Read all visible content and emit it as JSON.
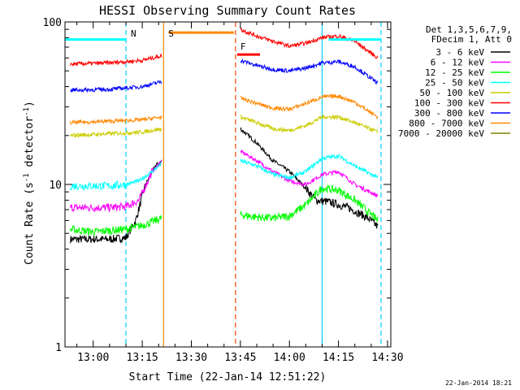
{
  "chart_data": {
    "type": "line",
    "title": "HESSI Observing Summary Count Rates",
    "xlabel": "Start Time (22-Jan-14 12:51:22)",
    "ylabel_main": "Count Rate (s",
    "ylabel_sup": "-1",
    "ylabel_tail": " detector",
    "ylabel_end": ")",
    "yscale": "log",
    "ylim": [
      1,
      100
    ],
    "xlim": [
      "12:51:22",
      "14:31:00"
    ],
    "xticks": [
      "13:00",
      "13:15",
      "13:30",
      "13:45",
      "14:00",
      "14:15",
      "14:30"
    ],
    "yticks": [
      "1",
      "10",
      "100"
    ],
    "legend_header": [
      "Det 1,3,5,6,7,9,",
      "FDecim 1, Att 0"
    ],
    "legend_position": "right",
    "footer_date": "22-Jan-2014 18:21",
    "bands": [
      {
        "label": "3 - 6 keV",
        "color": "#000000"
      },
      {
        "label": "6 - 12 keV",
        "color": "#ff00ff"
      },
      {
        "label": "12 - 25 keV",
        "color": "#00ff00"
      },
      {
        "label": "25 - 50 keV",
        "color": "#00ffff"
      },
      {
        "label": "50 - 100 keV",
        "color": "#cccc00"
      },
      {
        "label": "100 - 300 keV",
        "color": "#ff0000"
      },
      {
        "label": "300 - 800 keV",
        "color": "#0000ff"
      },
      {
        "label": "800 - 7000 keV",
        "color": "#ff8800"
      },
      {
        "label": "7000 - 20000 keV",
        "color": "#808000"
      }
    ],
    "markers": [
      {
        "label": "N",
        "time": "13:10",
        "style": "dashed",
        "color": "#00ccff"
      },
      {
        "label": "S",
        "time": "13:21:30",
        "style": "solid",
        "color": "#ff8800"
      },
      {
        "label": "F",
        "time": "13:43:30",
        "style": "dashed",
        "color": "#ff4400"
      },
      {
        "label": "",
        "time": "14:10",
        "style": "solid",
        "color": "#00ccff"
      },
      {
        "label": "",
        "time": "14:28",
        "style": "dashed",
        "color": "#00ccff"
      }
    ],
    "series": [
      {
        "name": "3 - 6 keV",
        "color": "#000000",
        "segments": [
          {
            "t": [
              "12:53",
              "13:05",
              "13:10",
              "13:13",
              "13:16",
              "13:19",
              "13:21"
            ],
            "v": [
              4.6,
              4.6,
              4.7,
              6,
              10,
              13,
              14
            ]
          },
          {
            "t": [
              "13:45",
              "13:50",
              "13:55",
              "14:00",
              "14:05",
              "14:08",
              "14:12",
              "14:18",
              "14:24",
              "14:27"
            ],
            "v": [
              22,
              18,
              14,
              12,
              9.5,
              8,
              7.8,
              7.2,
              6.2,
              5.5
            ]
          }
        ]
      },
      {
        "name": "6 - 12 keV",
        "color": "#ff00ff",
        "segments": [
          {
            "t": [
              "12:53",
              "13:05",
              "13:10",
              "13:14",
              "13:18",
              "13:21"
            ],
            "v": [
              7.2,
              7.2,
              7.3,
              8,
              12,
              14
            ]
          },
          {
            "t": [
              "13:45",
              "13:50",
              "13:55",
              "14:00",
              "14:05",
              "14:10",
              "14:15",
              "14:20",
              "14:27"
            ],
            "v": [
              16,
              14,
              12,
              10.5,
              10,
              11.5,
              12,
              10,
              8.5
            ]
          }
        ]
      },
      {
        "name": "12 - 25 keV",
        "color": "#00ff00",
        "segments": [
          {
            "t": [
              "12:53",
              "13:00",
              "13:10",
              "13:15",
              "13:21"
            ],
            "v": [
              5.3,
              5.1,
              5.3,
              5.6,
              6.2
            ]
          },
          {
            "t": [
              "13:45",
              "13:50",
              "13:55",
              "14:00",
              "14:05",
              "14:10",
              "14:15",
              "14:20",
              "14:27"
            ],
            "v": [
              6.5,
              6.3,
              6.2,
              6.4,
              7.5,
              9.5,
              9.2,
              8,
              6
            ]
          }
        ]
      },
      {
        "name": "25 - 50 keV",
        "color": "#00ffff",
        "segments": [
          {
            "t": [
              "12:53",
              "13:05",
              "13:10",
              "13:14",
              "13:18",
              "13:21"
            ],
            "v": [
              9.8,
              9.8,
              10,
              10.5,
              12,
              13.5
            ]
          },
          {
            "t": [
              "13:45",
              "13:50",
              "13:55",
              "14:00",
              "14:05",
              "14:10",
              "14:15",
              "14:20",
              "14:27"
            ],
            "v": [
              14,
              13,
              11.5,
              11,
              12,
              14.5,
              15,
              13,
              11
            ]
          }
        ]
      },
      {
        "name": "50 - 100 keV",
        "color": "#cccc00",
        "segments": [
          {
            "t": [
              "12:53",
              "13:05",
              "13:15",
              "13:21"
            ],
            "v": [
              20,
              20.5,
              21,
              22
            ]
          },
          {
            "t": [
              "13:45",
              "13:50",
              "13:55",
              "14:00",
              "14:05",
              "14:10",
              "14:15",
              "14:20",
              "14:27"
            ],
            "v": [
              26,
              24,
              22,
              21.5,
              23,
              26,
              26,
              24,
              21
            ]
          }
        ]
      },
      {
        "name": "100 - 300 keV",
        "color": "#ff0000",
        "segments": [
          {
            "t": [
              "12:53",
              "13:05",
              "13:15",
              "13:21"
            ],
            "v": [
              55,
              56,
              58,
              62
            ]
          },
          {
            "t": [
              "13:45",
              "13:50",
              "13:55",
              "14:00",
              "14:05",
              "14:10",
              "14:15",
              "14:20",
              "14:27"
            ],
            "v": [
              90,
              82,
              76,
              71,
              74,
              80,
              82,
              76,
              60
            ]
          }
        ]
      },
      {
        "name": "300 - 800 keV",
        "color": "#0000ff",
        "segments": [
          {
            "t": [
              "12:53",
              "13:05",
              "13:15",
              "13:21"
            ],
            "v": [
              38,
              38.5,
              40,
              43
            ]
          },
          {
            "t": [
              "13:45",
              "13:50",
              "13:55",
              "14:00",
              "14:05",
              "14:10",
              "14:15",
              "14:20",
              "14:27"
            ],
            "v": [
              58,
              54,
              51,
              50,
              52,
              56,
              57,
              53,
              42
            ]
          }
        ]
      },
      {
        "name": "800 - 7000 keV",
        "color": "#ff8800",
        "segments": [
          {
            "t": [
              "12:53",
              "13:05",
              "13:15",
              "13:21"
            ],
            "v": [
              24,
              24.5,
              25,
              26
            ]
          },
          {
            "t": [
              "13:45",
              "13:50",
              "13:55",
              "14:00",
              "14:05",
              "14:10",
              "14:15",
              "14:20",
              "14:27"
            ],
            "v": [
              34,
              31.5,
              29.5,
              29,
              31.5,
              34.5,
              35,
              32,
              26
            ]
          }
        ]
      }
    ],
    "flag_bars": [
      {
        "label": "N",
        "color": "#00ffff",
        "y": 78,
        "t": [
          [
            "12:51:22",
            "13:10"
          ],
          [
            "14:12",
            "14:28"
          ]
        ]
      },
      {
        "label": "S",
        "color": "#ff8800",
        "y": 86,
        "t": [
          [
            "13:23",
            "13:43"
          ]
        ]
      },
      {
        "label": "F",
        "color": "#ff0000",
        "y": 63,
        "t": [
          [
            "13:44",
            "13:51"
          ]
        ]
      }
    ]
  }
}
